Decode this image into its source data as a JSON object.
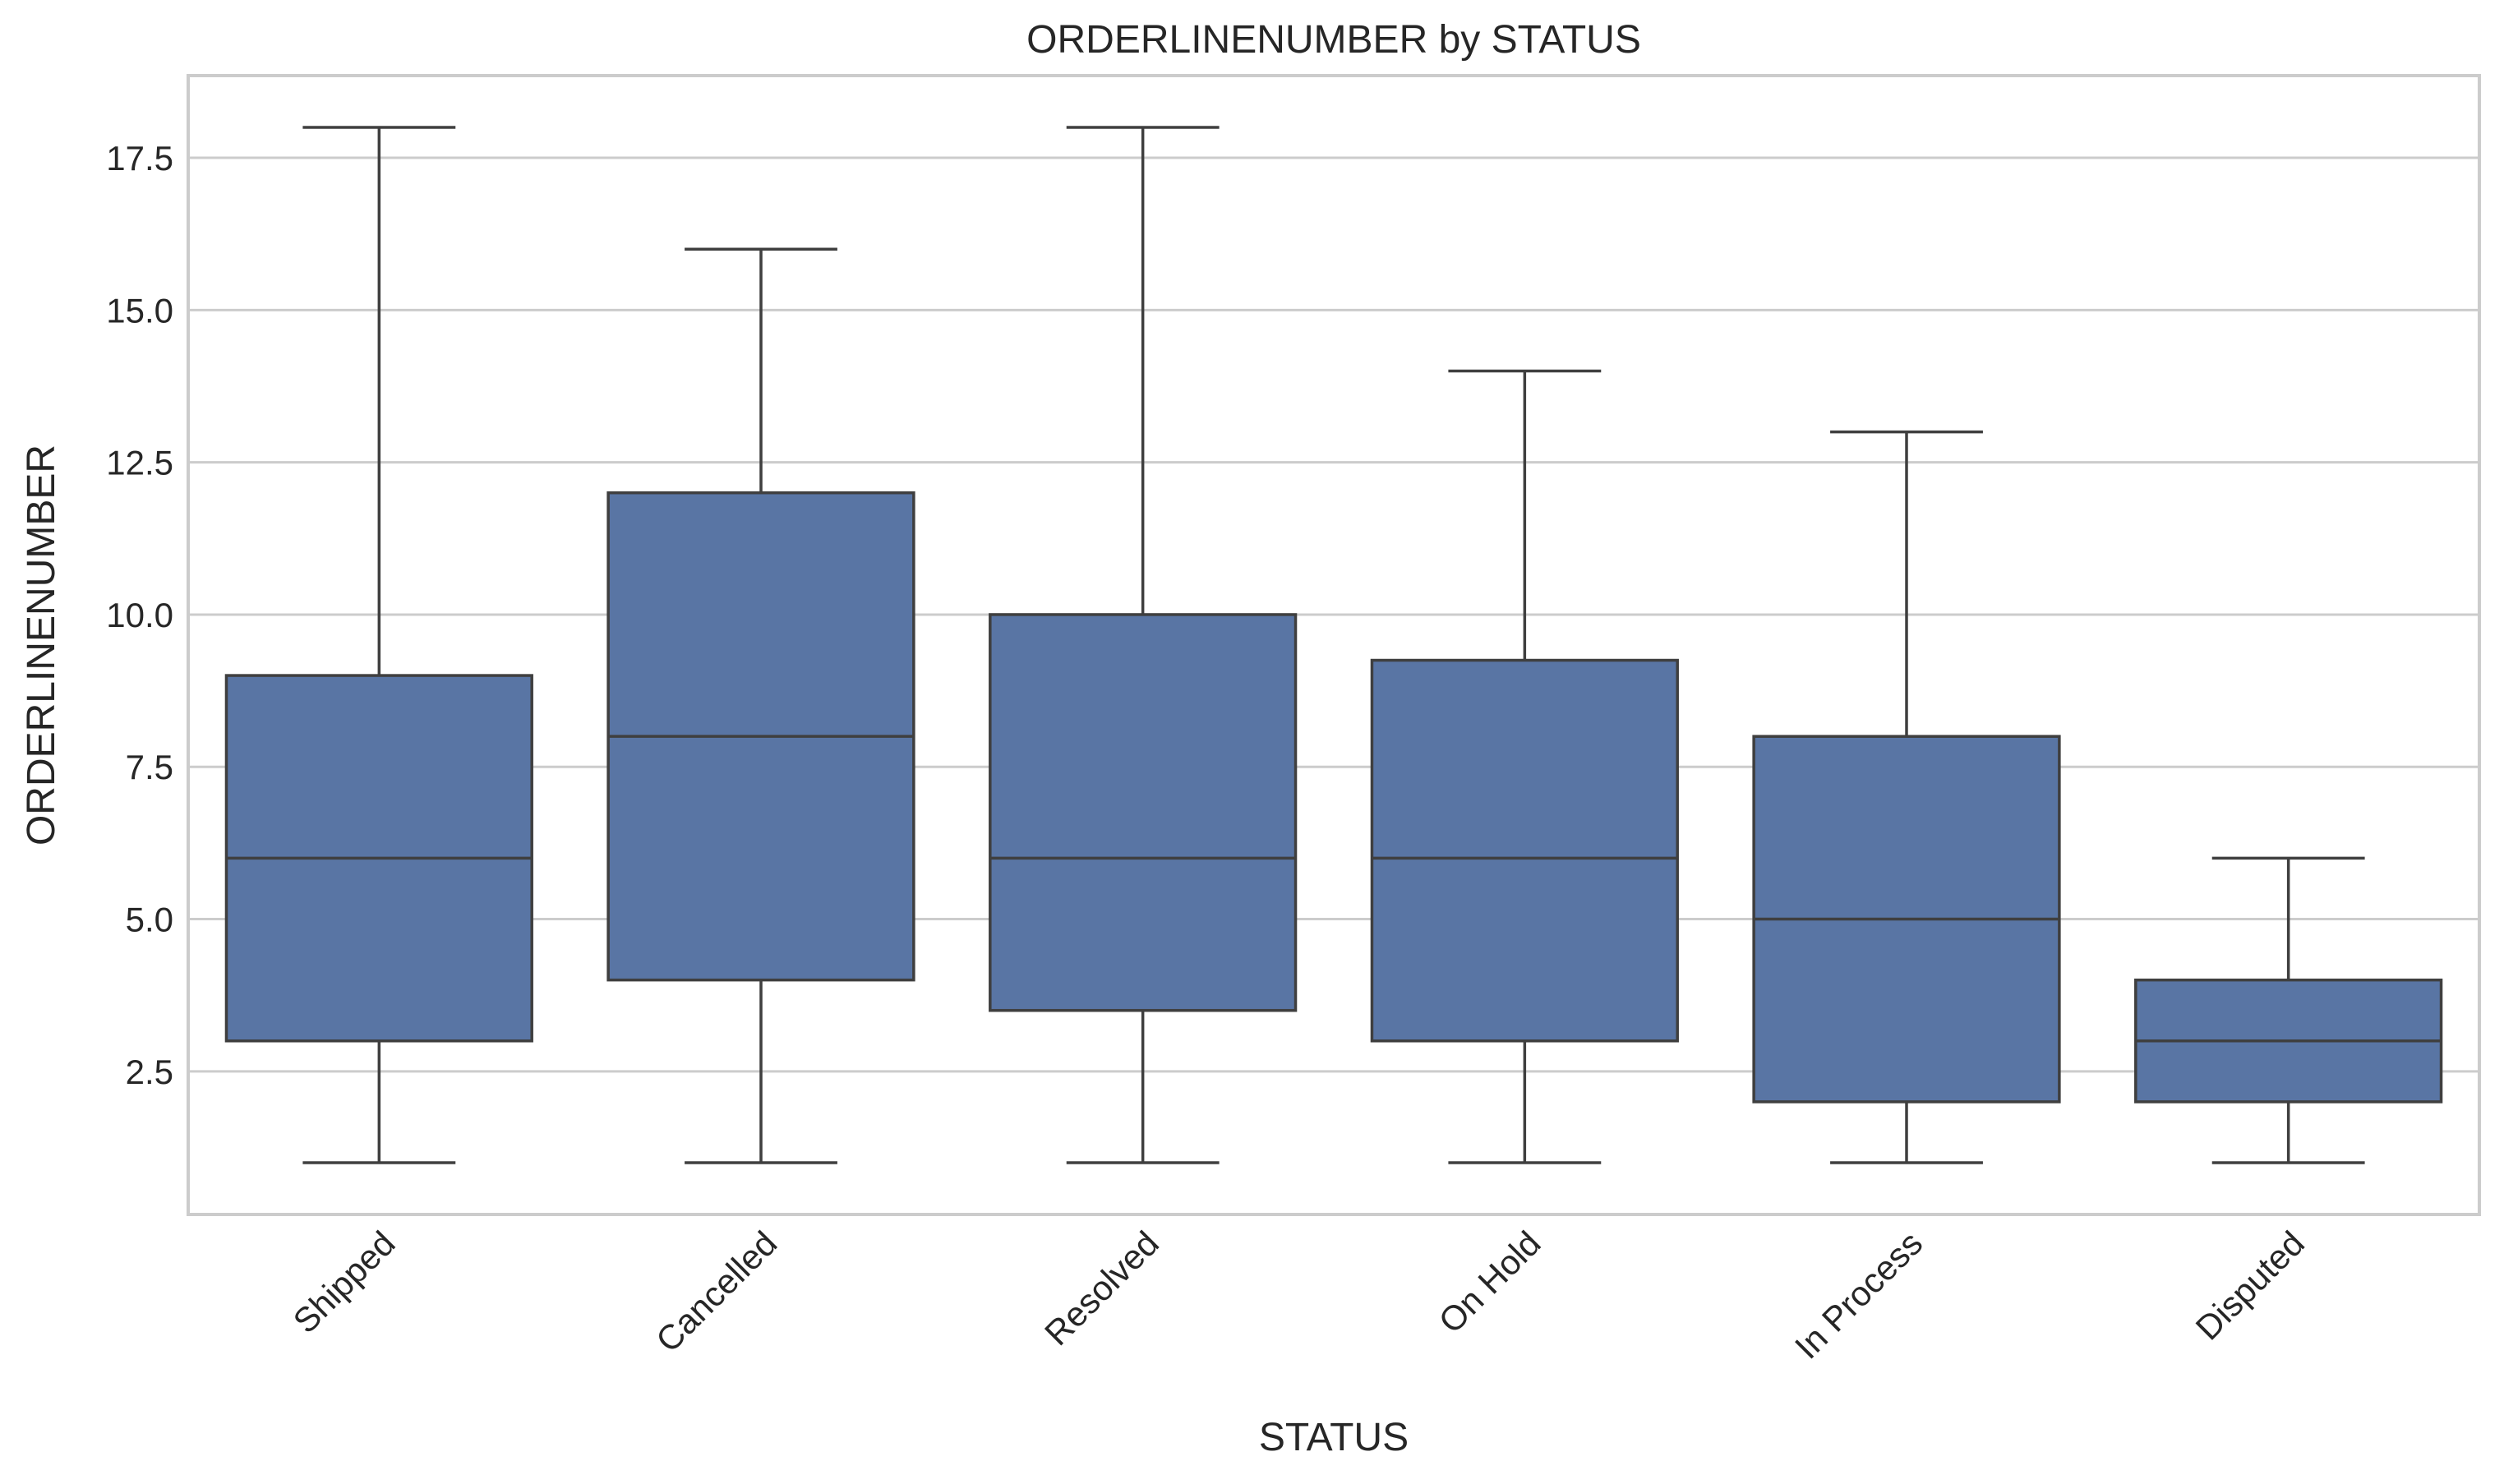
{
  "chart_data": {
    "type": "box",
    "title": "ORDERLINENUMBER by STATUS",
    "xlabel": "STATUS",
    "ylabel": "ORDERLINENUMBER",
    "ylim": [
      0.15,
      18.85
    ],
    "yticks": [
      2.5,
      5.0,
      7.5,
      10.0,
      12.5,
      15.0,
      17.5
    ],
    "ytick_labels": [
      "2.5",
      "5.0",
      "7.5",
      "10.0",
      "12.5",
      "15.0",
      "17.5"
    ],
    "grid": "horizontal",
    "categories": [
      "Shipped",
      "Cancelled",
      "Resolved",
      "On Hold",
      "In Process",
      "Disputed"
    ],
    "series": [
      {
        "boxes": [
          {
            "category": "Shipped",
            "whisker_low": 1,
            "q1": 3,
            "median": 6,
            "q3": 9,
            "whisker_high": 18
          },
          {
            "category": "Cancelled",
            "whisker_low": 1,
            "q1": 4,
            "median": 8,
            "q3": 12,
            "whisker_high": 16
          },
          {
            "category": "Resolved",
            "whisker_low": 1,
            "q1": 3.5,
            "median": 6,
            "q3": 10,
            "whisker_high": 18
          },
          {
            "category": "On Hold",
            "whisker_low": 1,
            "q1": 3,
            "median": 6,
            "q3": 9.25,
            "whisker_high": 14
          },
          {
            "category": "In Process",
            "whisker_low": 1,
            "q1": 2,
            "median": 5,
            "q3": 8,
            "whisker_high": 13
          },
          {
            "category": "Disputed",
            "whisker_low": 1,
            "q1": 2,
            "median": 3,
            "q3": 4,
            "whisker_high": 6
          }
        ]
      }
    ],
    "colors": {
      "box_fill": "#5975a4",
      "line": "#3f3f3f",
      "grid": "#cccccc",
      "frame": "#cccccc",
      "text": "#262626",
      "background": "#ffffff"
    }
  }
}
